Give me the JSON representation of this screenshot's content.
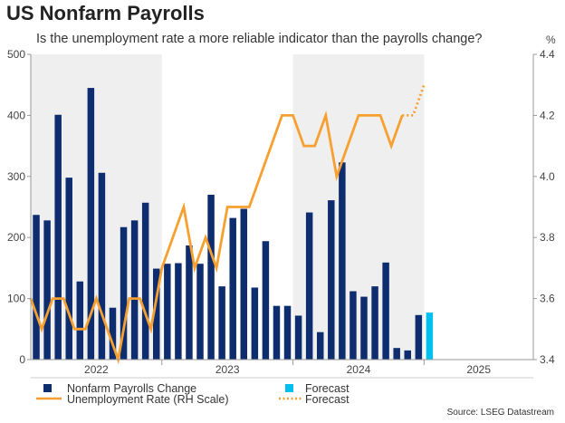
{
  "header": {
    "title": "US Nonfarm Payrolls",
    "subtitle": "Is the unemployment rate a more reliable indicator than the payrolls change?",
    "right_unit": "%",
    "source": "Source: LSEG Datastream"
  },
  "colors": {
    "bar": "#0e2d6e",
    "bar_forecast": "#00c0f0",
    "line": "#f7a030",
    "shade": "#efefef",
    "axis": "#999999"
  },
  "legend": {
    "bars": "Nonfarm Payrolls Change",
    "bar_forecast": "Forecast",
    "line": "Unemployment Rate (RH Scale)",
    "line_forecast": "Forecast"
  },
  "chart_data": {
    "type": "bar+line",
    "title": "US Nonfarm Payrolls",
    "left_axis": {
      "min": 0,
      "max": 500,
      "ticks": [
        0,
        100,
        200,
        300,
        400,
        500
      ]
    },
    "right_axis": {
      "min": 3.4,
      "max": 4.4,
      "ticks": [
        3.4,
        3.6,
        3.8,
        4.0,
        4.2,
        4.4
      ],
      "unit": "%"
    },
    "x_year_labels": [
      {
        "label": "2022",
        "from": 0,
        "to": 11
      },
      {
        "label": "2023",
        "from": 12,
        "to": 23
      },
      {
        "label": "2024",
        "from": 24,
        "to": 35
      },
      {
        "label": "2025",
        "from": 36,
        "to": 45
      }
    ],
    "shaded_years": [
      2022,
      2024
    ],
    "months": 46,
    "series": [
      {
        "name": "Nonfarm Payrolls Change",
        "type": "bar",
        "values": [
          237,
          228,
          401,
          298,
          128,
          445,
          306,
          85,
          217,
          228,
          257,
          149,
          157,
          158,
          187,
          157,
          270,
          120,
          232,
          247,
          118,
          194,
          88,
          88,
          72,
          241,
          45,
          261,
          323,
          112,
          103,
          120,
          159,
          19,
          15,
          73
        ],
        "forecast": {
          "index": 36,
          "value": 77
        }
      },
      {
        "name": "Unemployment Rate (RH Scale)",
        "type": "line",
        "values": [
          3.6,
          3.5,
          3.6,
          3.6,
          3.5,
          3.5,
          3.6,
          3.5,
          3.4,
          3.6,
          3.6,
          3.5,
          3.7,
          3.8,
          3.9,
          3.7,
          3.8,
          3.7,
          3.9,
          3.9,
          3.9,
          4.0,
          4.1,
          4.2,
          4.2,
          4.1,
          4.1,
          4.2,
          4.0,
          4.1,
          4.2,
          4.2,
          4.2,
          4.1,
          4.2
        ],
        "forecast": [
          4.2,
          4.3
        ]
      }
    ]
  }
}
